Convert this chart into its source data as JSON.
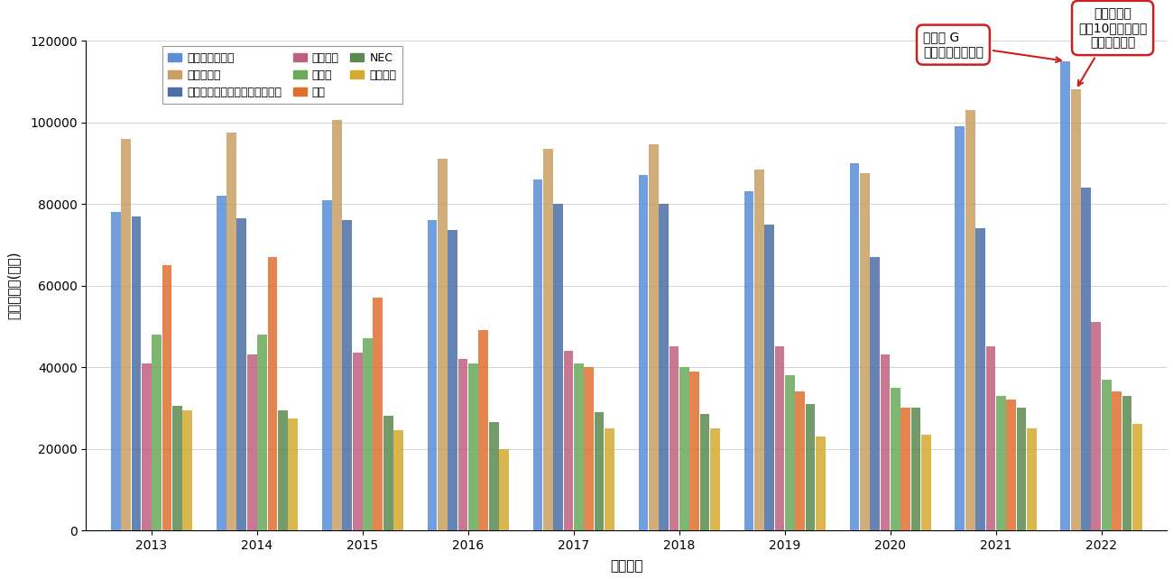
{
  "years": [
    2013,
    2014,
    2015,
    2016,
    2017,
    2018,
    2019,
    2020,
    2021,
    2022
  ],
  "series": {
    "ソニーグループ": [
      78000,
      82000,
      81000,
      76000,
      86000,
      87000,
      83000,
      90000,
      99000,
      115000
    ],
    "日立製作所": [
      96000,
      97500,
      100500,
      91000,
      93500,
      94500,
      88500,
      87500,
      103000,
      108000
    ],
    "パナソニックホールディングス": [
      77000,
      76500,
      76000,
      73500,
      80000,
      80000,
      75000,
      67000,
      74000,
      84000
    ],
    "三菱電機": [
      41000,
      43000,
      43500,
      42000,
      44000,
      45000,
      45000,
      43000,
      45000,
      51000
    ],
    "富士通": [
      48000,
      48000,
      47000,
      41000,
      41000,
      40000,
      38000,
      35000,
      33000,
      37000
    ],
    "東芝": [
      65000,
      67000,
      57000,
      49000,
      40000,
      39000,
      34000,
      30000,
      32000,
      34000
    ],
    "NEC": [
      30500,
      29500,
      28000,
      26500,
      29000,
      28500,
      31000,
      30000,
      30000,
      33000
    ],
    "シャープ": [
      29500,
      27500,
      24500,
      20000,
      25000,
      25000,
      23000,
      23500,
      25000,
      26000
    ]
  },
  "colors": {
    "ソニーグループ": "#5b8dd9",
    "日立製作所": "#c8a064",
    "パナソニックホールディングス": "#4a6fa5",
    "三菱電機": "#c06080",
    "富士通": "#6aaa5a",
    "東芝": "#e07030",
    "NEC": "#5a8a50",
    "シャープ": "#d4aa30"
  },
  "ylabel": "研究開発費(億円)",
  "xlabel": "（年度）",
  "ylim": [
    0,
    120000
  ],
  "yticks": [
    0,
    20000,
    40000,
    60000,
    80000,
    100000,
    120000
  ],
  "annotation_sony": {
    "text": "ソニー G\n過去最高の売上高",
    "point_year_idx": 9,
    "point_series": "ソニーグループ"
  },
  "annotation_hitachi": {
    "text": "日立製作所\n過去10年における\n最高の売上高",
    "point_year_idx": 9,
    "point_series": "日立製作所"
  },
  "background_color": "#ffffff"
}
